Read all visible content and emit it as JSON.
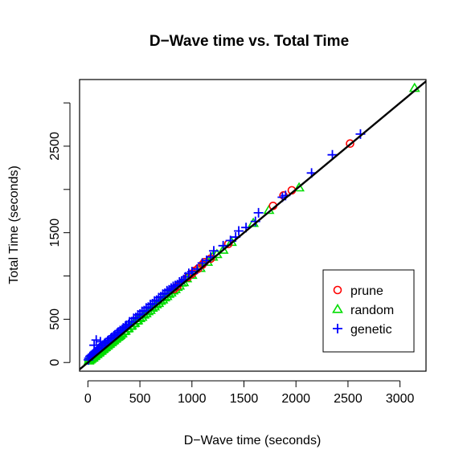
{
  "chart_data": {
    "type": "scatter",
    "title": "D−Wave time vs. Total Time",
    "xlabel": "D−Wave time (seconds)",
    "ylabel": "Total Time (seconds)",
    "xlim": [
      -80,
      3250
    ],
    "ylim": [
      -100,
      3270
    ],
    "xticks": [
      0,
      500,
      1000,
      1500,
      2000,
      2500,
      3000
    ],
    "xtick_labels": [
      "0",
      "500",
      "1000",
      "1500",
      "2000",
      "2500",
      "3000"
    ],
    "yticks": [
      0,
      500,
      1000,
      1500,
      2000,
      2500,
      3000
    ],
    "ytick_labels": [
      "0",
      "500",
      "",
      "1500",
      "",
      "2500",
      ""
    ],
    "reference_line": {
      "slope": 1,
      "intercept": 0,
      "color": "#000000"
    },
    "legend": {
      "position": "bottom-right",
      "entries": [
        {
          "label": "prune",
          "color": "#FF0000",
          "symbol": "circle"
        },
        {
          "label": "random",
          "color": "#00DD00",
          "symbol": "triangle"
        },
        {
          "label": "genetic",
          "color": "#0000FF",
          "symbol": "plus"
        }
      ]
    },
    "series": [
      {
        "name": "prune",
        "color": "#FF0000",
        "symbol": "circle",
        "points": [
          [
            1000,
            1025
          ],
          [
            1030,
            1060
          ],
          [
            1060,
            1085
          ],
          [
            1120,
            1160
          ],
          [
            1180,
            1200
          ],
          [
            830,
            850
          ],
          [
            860,
            880
          ],
          [
            1780,
            1810
          ],
          [
            1960,
            1990
          ],
          [
            1880,
            1930
          ],
          [
            2520,
            2530
          ],
          [
            1100,
            1130
          ],
          [
            960,
            985
          ],
          [
            1350,
            1370
          ]
        ]
      },
      {
        "name": "random",
        "color": "#00DD00",
        "symbol": "triangle",
        "points": [
          [
            3140,
            3170
          ],
          [
            2030,
            2020
          ],
          [
            1740,
            1760
          ],
          [
            1590,
            1610
          ],
          [
            1380,
            1390
          ],
          [
            1300,
            1300
          ],
          [
            1240,
            1250
          ],
          [
            1200,
            1220
          ],
          [
            1150,
            1160
          ],
          [
            1080,
            1090
          ],
          [
            950,
            970
          ],
          [
            900,
            920
          ],
          [
            860,
            870
          ],
          [
            820,
            830
          ],
          [
            780,
            790
          ],
          [
            740,
            750
          ],
          [
            700,
            710
          ],
          [
            660,
            670
          ],
          [
            620,
            630
          ],
          [
            580,
            590
          ],
          [
            540,
            550
          ],
          [
            500,
            510
          ],
          [
            470,
            480
          ],
          [
            440,
            450
          ],
          [
            410,
            420
          ],
          [
            380,
            390
          ],
          [
            350,
            360
          ],
          [
            320,
            330
          ],
          [
            300,
            305
          ],
          [
            280,
            290
          ],
          [
            260,
            270
          ],
          [
            240,
            250
          ],
          [
            220,
            230
          ],
          [
            200,
            210
          ],
          [
            180,
            190
          ],
          [
            160,
            170
          ],
          [
            140,
            150
          ],
          [
            120,
            130
          ],
          [
            100,
            110
          ],
          [
            80,
            90
          ],
          [
            60,
            70
          ],
          [
            40,
            50
          ],
          [
            20,
            30
          ],
          [
            10,
            20
          ],
          [
            30,
            40
          ],
          [
            50,
            55
          ],
          [
            70,
            75
          ],
          [
            90,
            95
          ],
          [
            110,
            115
          ],
          [
            130,
            135
          ],
          [
            150,
            155
          ],
          [
            170,
            175
          ],
          [
            190,
            195
          ],
          [
            210,
            215
          ],
          [
            230,
            235
          ],
          [
            250,
            255
          ],
          [
            270,
            275
          ],
          [
            290,
            295
          ],
          [
            310,
            315
          ],
          [
            330,
            335
          ],
          [
            360,
            365
          ],
          [
            390,
            395
          ],
          [
            420,
            425
          ],
          [
            450,
            455
          ],
          [
            480,
            485
          ],
          [
            520,
            525
          ],
          [
            560,
            565
          ],
          [
            600,
            605
          ],
          [
            640,
            645
          ],
          [
            680,
            685
          ],
          [
            720,
            725
          ],
          [
            760,
            765
          ],
          [
            800,
            805
          ],
          [
            840,
            845
          ],
          [
            880,
            885
          ],
          [
            920,
            925
          ],
          [
            1000,
            1010
          ],
          [
            60,
            100
          ],
          [
            80,
            120
          ],
          [
            100,
            140
          ],
          [
            120,
            160
          ],
          [
            140,
            185
          ],
          [
            40,
            80
          ],
          [
            20,
            60
          ],
          [
            15,
            45
          ]
        ]
      },
      {
        "name": "genetic",
        "color": "#0000FF",
        "symbol": "plus",
        "points": [
          [
            2620,
            2640
          ],
          [
            2350,
            2400
          ],
          [
            2150,
            2190
          ],
          [
            1900,
            1930
          ],
          [
            1640,
            1730
          ],
          [
            1610,
            1630
          ],
          [
            1450,
            1520
          ],
          [
            1420,
            1450
          ],
          [
            1370,
            1410
          ],
          [
            1210,
            1290
          ],
          [
            1180,
            1220
          ],
          [
            1100,
            1150
          ],
          [
            1050,
            1080
          ],
          [
            970,
            1030
          ],
          [
            920,
            960
          ],
          [
            880,
            930
          ],
          [
            840,
            890
          ],
          [
            800,
            860
          ],
          [
            760,
            830
          ],
          [
            720,
            790
          ],
          [
            680,
            750
          ],
          [
            640,
            710
          ],
          [
            600,
            670
          ],
          [
            560,
            630
          ],
          [
            520,
            590
          ],
          [
            480,
            550
          ],
          [
            440,
            510
          ],
          [
            400,
            470
          ],
          [
            370,
            430
          ],
          [
            340,
            400
          ],
          [
            310,
            370
          ],
          [
            280,
            340
          ],
          [
            250,
            310
          ],
          [
            220,
            280
          ],
          [
            190,
            250
          ],
          [
            160,
            220
          ],
          [
            130,
            190
          ],
          [
            100,
            160
          ],
          [
            80,
            130
          ],
          [
            60,
            110
          ],
          [
            40,
            90
          ],
          [
            20,
            70
          ],
          [
            10,
            50
          ],
          [
            5,
            30
          ],
          [
            30,
            80
          ],
          [
            50,
            100
          ],
          [
            70,
            120
          ],
          [
            90,
            140
          ],
          [
            110,
            170
          ],
          [
            140,
            200
          ],
          [
            170,
            230
          ],
          [
            200,
            260
          ],
          [
            230,
            290
          ],
          [
            260,
            320
          ],
          [
            290,
            350
          ],
          [
            330,
            380
          ],
          [
            360,
            410
          ],
          [
            390,
            440
          ],
          [
            420,
            470
          ],
          [
            460,
            520
          ],
          [
            500,
            560
          ],
          [
            540,
            600
          ],
          [
            580,
            640
          ],
          [
            620,
            680
          ],
          [
            660,
            720
          ],
          [
            700,
            760
          ],
          [
            740,
            800
          ],
          [
            780,
            840
          ],
          [
            820,
            880
          ],
          [
            860,
            900
          ],
          [
            900,
            940
          ],
          [
            940,
            990
          ],
          [
            1000,
            1050
          ],
          [
            1140,
            1180
          ],
          [
            1300,
            1350
          ],
          [
            1520,
            1560
          ],
          [
            1870,
            1910
          ],
          [
            80,
            260
          ],
          [
            60,
            200
          ],
          [
            120,
            240
          ]
        ]
      }
    ]
  }
}
